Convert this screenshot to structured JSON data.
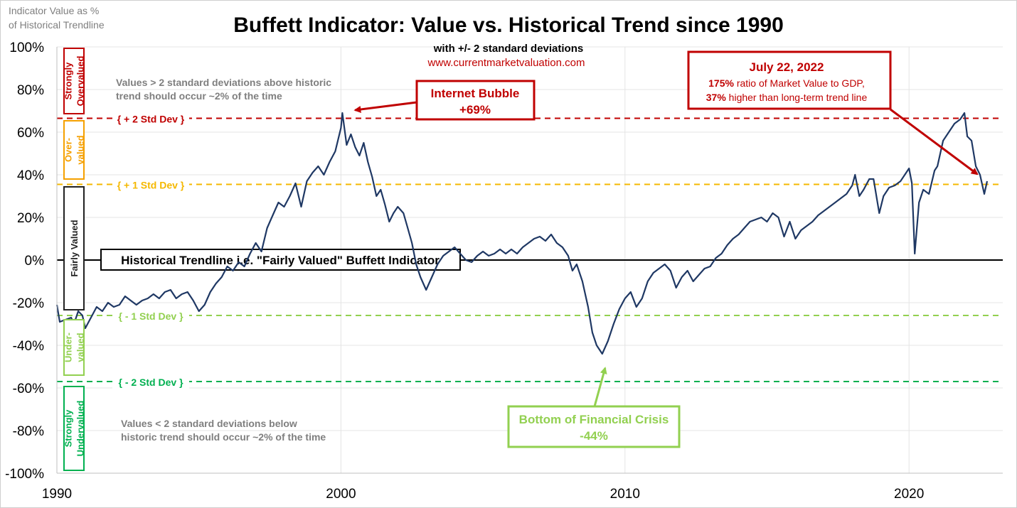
{
  "chart_data": {
    "type": "line",
    "title": "Buffett Indicator: Value vs. Historical Trend since 1990",
    "subtitle": "with +/- 2 standard deviations",
    "source": "www.currentmarketvaluation.com",
    "ylabel": "Indicator Value as % of Historical Trendline",
    "ylabel_lines": [
      "Indicator Value as %",
      "of Historical Trendline"
    ],
    "xlim": [
      1990,
      2023.3
    ],
    "ylim": [
      -100,
      100
    ],
    "x_ticks": [
      1990,
      2000,
      2010,
      2020
    ],
    "y_ticks": [
      100,
      80,
      60,
      40,
      20,
      0,
      -20,
      -40,
      -60,
      -80,
      -100
    ],
    "y_tick_labels": [
      "100%",
      "80%",
      "60%",
      "40%",
      "20%",
      "0%",
      "-20%",
      "-40%",
      "-60%",
      "-80%",
      "-100%"
    ],
    "grid": true,
    "reference_lines": [
      {
        "label": "+ 2 Std Dev",
        "value": 66.5,
        "color": "#c00000",
        "style": "dashed"
      },
      {
        "label": "+ 1 Std Dev",
        "value": 35.5,
        "color": "#f5b800",
        "style": "dashed"
      },
      {
        "label": "- 1 Std Dev",
        "value": -26,
        "color": "#92d050",
        "style": "dashed"
      },
      {
        "label": "- 2 Std Dev",
        "value": -57,
        "color": "#00b050",
        "style": "dashed"
      }
    ],
    "trendline": {
      "label": "Historical Trendline i.e. \"Fairly Valued\" Buffett Indicator",
      "value": 0
    },
    "zones": [
      {
        "label": "Strongly Overvalued",
        "lines": [
          "Strongly",
          "Overvalued"
        ],
        "color": "#c00000",
        "range": [
          66.5,
          100
        ]
      },
      {
        "label": "Over-valued",
        "lines": [
          "Over-",
          "valued"
        ],
        "color": "#f5a000",
        "range": [
          35.5,
          66.5
        ]
      },
      {
        "label": "Fairly Valued",
        "lines": [
          "Fairly Valued"
        ],
        "color": "#222222",
        "range": [
          -26,
          35.5
        ]
      },
      {
        "label": "Under-valued",
        "lines": [
          "Under-",
          "valued"
        ],
        "color": "#92d050",
        "range": [
          -57,
          -26
        ]
      },
      {
        "label": "Strongly Undervalued",
        "lines": [
          "Strongly",
          "Undervalued"
        ],
        "color": "#00b050",
        "range": [
          -100,
          -57
        ]
      }
    ],
    "notes": [
      {
        "lines": [
          "Values > 2 standard deviations above historic",
          "trend should occur ~2% of the time"
        ]
      },
      {
        "lines": [
          "Values < 2 standard deviations below",
          "historic trend should occur ~2% of the time"
        ]
      }
    ],
    "annotations": [
      {
        "title": "Internet Bubble",
        "value_text": "+69%",
        "point": [
          2000.1,
          69
        ],
        "color": "#c00000"
      },
      {
        "title": "Bottom of Financial Crisis",
        "value_text": "-44%",
        "point": [
          2009.2,
          -44
        ],
        "color": "#92d050"
      },
      {
        "title": "July 22, 2022",
        "line1": {
          "bold": "175%",
          "text": " ratio of Market Value to GDP,"
        },
        "line2": {
          "bold": "37%",
          "text": " higher than long-term trend line"
        },
        "point": [
          2022.55,
          37
        ],
        "color": "#c00000"
      }
    ],
    "series": [
      {
        "color": "#1f3864",
        "points": [
          [
            1990.0,
            -21
          ],
          [
            1990.1,
            -29
          ],
          [
            1990.3,
            -28
          ],
          [
            1990.5,
            -27
          ],
          [
            1990.6,
            -30
          ],
          [
            1990.75,
            -24
          ],
          [
            1990.9,
            -26
          ],
          [
            1991.0,
            -32
          ],
          [
            1991.2,
            -27
          ],
          [
            1991.4,
            -22
          ],
          [
            1991.6,
            -24
          ],
          [
            1991.8,
            -20
          ],
          [
            1992.0,
            -22
          ],
          [
            1992.2,
            -21
          ],
          [
            1992.4,
            -17
          ],
          [
            1992.6,
            -19
          ],
          [
            1992.8,
            -21
          ],
          [
            1993.0,
            -19
          ],
          [
            1993.2,
            -18
          ],
          [
            1993.4,
            -16
          ],
          [
            1993.6,
            -18
          ],
          [
            1993.8,
            -15
          ],
          [
            1994.0,
            -14
          ],
          [
            1994.2,
            -18
          ],
          [
            1994.4,
            -16
          ],
          [
            1994.6,
            -15
          ],
          [
            1994.8,
            -19
          ],
          [
            1995.0,
            -24
          ],
          [
            1995.2,
            -21
          ],
          [
            1995.4,
            -15
          ],
          [
            1995.6,
            -11
          ],
          [
            1995.8,
            -8
          ],
          [
            1996.0,
            -3
          ],
          [
            1996.2,
            -5
          ],
          [
            1996.4,
            -1
          ],
          [
            1996.6,
            -3
          ],
          [
            1996.8,
            3
          ],
          [
            1997.0,
            8
          ],
          [
            1997.2,
            4
          ],
          [
            1997.4,
            15
          ],
          [
            1997.6,
            21
          ],
          [
            1997.8,
            27
          ],
          [
            1998.0,
            25
          ],
          [
            1998.2,
            30
          ],
          [
            1998.4,
            36
          ],
          [
            1998.6,
            25
          ],
          [
            1998.8,
            37
          ],
          [
            1999.0,
            41
          ],
          [
            1999.2,
            44
          ],
          [
            1999.4,
            40
          ],
          [
            1999.6,
            46
          ],
          [
            1999.8,
            51
          ],
          [
            2000.0,
            62
          ],
          [
            2000.05,
            69
          ],
          [
            2000.2,
            54
          ],
          [
            2000.35,
            59
          ],
          [
            2000.5,
            53
          ],
          [
            2000.65,
            49
          ],
          [
            2000.8,
            55
          ],
          [
            2000.95,
            46
          ],
          [
            2001.1,
            39
          ],
          [
            2001.25,
            30
          ],
          [
            2001.4,
            33
          ],
          [
            2001.55,
            26
          ],
          [
            2001.7,
            18
          ],
          [
            2001.85,
            22
          ],
          [
            2002.0,
            25
          ],
          [
            2002.2,
            22
          ],
          [
            2002.35,
            15
          ],
          [
            2002.5,
            8
          ],
          [
            2002.65,
            -2
          ],
          [
            2002.8,
            -8
          ],
          [
            2003.0,
            -14
          ],
          [
            2003.2,
            -8
          ],
          [
            2003.4,
            -2
          ],
          [
            2003.6,
            2
          ],
          [
            2003.8,
            4
          ],
          [
            2004.0,
            6
          ],
          [
            2004.2,
            3
          ],
          [
            2004.4,
            0
          ],
          [
            2004.6,
            -1
          ],
          [
            2004.8,
            2
          ],
          [
            2005.0,
            4
          ],
          [
            2005.2,
            2
          ],
          [
            2005.4,
            3
          ],
          [
            2005.6,
            5
          ],
          [
            2005.8,
            3
          ],
          [
            2006.0,
            5
          ],
          [
            2006.2,
            3
          ],
          [
            2006.4,
            6
          ],
          [
            2006.6,
            8
          ],
          [
            2006.8,
            10
          ],
          [
            2007.0,
            11
          ],
          [
            2007.2,
            9
          ],
          [
            2007.4,
            12
          ],
          [
            2007.6,
            8
          ],
          [
            2007.8,
            6
          ],
          [
            2008.0,
            2
          ],
          [
            2008.15,
            -5
          ],
          [
            2008.3,
            -2
          ],
          [
            2008.5,
            -10
          ],
          [
            2008.7,
            -22
          ],
          [
            2008.85,
            -34
          ],
          [
            2009.0,
            -40
          ],
          [
            2009.2,
            -44
          ],
          [
            2009.4,
            -38
          ],
          [
            2009.6,
            -30
          ],
          [
            2009.8,
            -23
          ],
          [
            2010.0,
            -18
          ],
          [
            2010.2,
            -15
          ],
          [
            2010.4,
            -22
          ],
          [
            2010.6,
            -18
          ],
          [
            2010.8,
            -10
          ],
          [
            2011.0,
            -6
          ],
          [
            2011.2,
            -4
          ],
          [
            2011.4,
            -2
          ],
          [
            2011.6,
            -5
          ],
          [
            2011.8,
            -13
          ],
          [
            2012.0,
            -8
          ],
          [
            2012.2,
            -5
          ],
          [
            2012.4,
            -10
          ],
          [
            2012.6,
            -7
          ],
          [
            2012.8,
            -4
          ],
          [
            2013.0,
            -3
          ],
          [
            2013.2,
            1
          ],
          [
            2013.4,
            3
          ],
          [
            2013.6,
            7
          ],
          [
            2013.8,
            10
          ],
          [
            2014.0,
            12
          ],
          [
            2014.2,
            15
          ],
          [
            2014.4,
            18
          ],
          [
            2014.6,
            19
          ],
          [
            2014.8,
            20
          ],
          [
            2015.0,
            18
          ],
          [
            2015.2,
            22
          ],
          [
            2015.4,
            20
          ],
          [
            2015.6,
            11
          ],
          [
            2015.8,
            18
          ],
          [
            2016.0,
            10
          ],
          [
            2016.2,
            14
          ],
          [
            2016.4,
            16
          ],
          [
            2016.6,
            18
          ],
          [
            2016.8,
            21
          ],
          [
            2017.0,
            23
          ],
          [
            2017.2,
            25
          ],
          [
            2017.4,
            27
          ],
          [
            2017.6,
            29
          ],
          [
            2017.8,
            31
          ],
          [
            2018.0,
            35
          ],
          [
            2018.1,
            40
          ],
          [
            2018.25,
            30
          ],
          [
            2018.4,
            33
          ],
          [
            2018.6,
            38
          ],
          [
            2018.75,
            38
          ],
          [
            2018.95,
            22
          ],
          [
            2019.1,
            30
          ],
          [
            2019.3,
            34
          ],
          [
            2019.5,
            35
          ],
          [
            2019.7,
            37
          ],
          [
            2019.85,
            40
          ],
          [
            2020.0,
            43
          ],
          [
            2020.1,
            36
          ],
          [
            2020.2,
            3
          ],
          [
            2020.35,
            27
          ],
          [
            2020.5,
            33
          ],
          [
            2020.7,
            31
          ],
          [
            2020.9,
            42
          ],
          [
            2021.0,
            44
          ],
          [
            2021.2,
            56
          ],
          [
            2021.4,
            60
          ],
          [
            2021.6,
            64
          ],
          [
            2021.8,
            66
          ],
          [
            2021.95,
            69
          ],
          [
            2022.05,
            58
          ],
          [
            2022.2,
            56
          ],
          [
            2022.35,
            44
          ],
          [
            2022.5,
            40
          ],
          [
            2022.55,
            37
          ],
          [
            2022.65,
            31
          ],
          [
            2022.75,
            37
          ]
        ]
      }
    ]
  }
}
